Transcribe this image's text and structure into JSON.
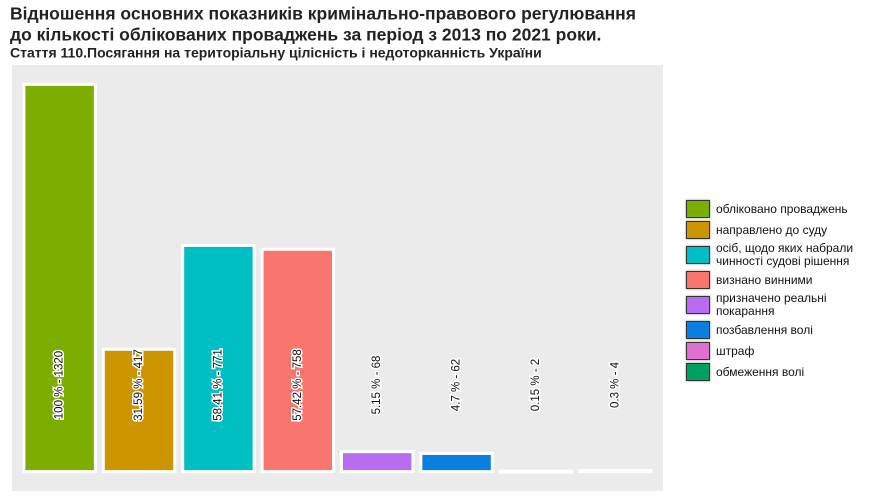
{
  "chart_data": {
    "type": "bar",
    "title": [
      "Відношення основних показників кримінально-правового регулювання",
      "до кількості облікованих проваджень за період з 2013 по 2021 роки."
    ],
    "subtitle": "Стаття 110.Посягання на територіальну цілісність і недоторканність України",
    "categories": [
      "обліковано проваджень",
      "направлено до суду",
      "осіб, щодо яких набрали чинності судові рішення",
      "визнано винними",
      "призначено реальні покарання",
      "позбавлення волі",
      "штраф",
      "обмеження волі"
    ],
    "values": [
      1320,
      417,
      771,
      758,
      68,
      62,
      2,
      4
    ],
    "value_labels": [
      "100 % - 1320",
      "31.59 % - 417",
      "58.41 % - 771",
      "57.42 % - 758",
      "5.15 % - 68",
      "4.7 % - 62",
      "0.15 % - 2",
      "0.3 % - 4"
    ],
    "colors": [
      "#7cae00",
      "#cd9600",
      "#00bfc4",
      "#f8766d",
      "#b86cf0",
      "#0a7fe0",
      "#e070d0",
      "#00a060"
    ],
    "ylim": [
      -66,
      1386
    ],
    "legend": "right"
  }
}
